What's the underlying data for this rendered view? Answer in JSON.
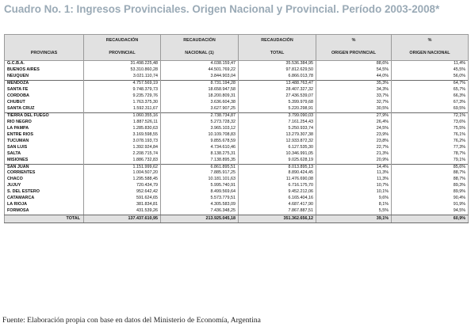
{
  "title": "Cuadro No. 1: Ingresos Provinciales. Origen Nacional y Provincial. Período 2003-2008*",
  "headers": {
    "provincias": "PROVINCIAS",
    "rec_prov_top": "RECAUDACIÓN",
    "rec_prov_bottom": "PROVINCIAL",
    "rec_nac_top": "RECAUDACIÓN",
    "rec_nac_bottom": "NACIONAL (1)",
    "rec_tot_top": "RECAUDACIÓN",
    "rec_tot_bottom": "TOTAL",
    "pct_prov_top": "%",
    "pct_prov_bottom": "ORIGEN PROVINCIAL",
    "pct_nac_top": "%",
    "pct_nac_bottom": "ORIGEN NACIONAL"
  },
  "groups": [
    [
      [
        "G.C.B.A.",
        "31.498.225,48",
        "4.038.159,47",
        "35.536.384,95",
        "88,6%",
        "11,4%"
      ],
      [
        "BUENOS AIRES",
        "53.310.860,28",
        "44.501.769,22",
        "97.812.629,50",
        "54,5%",
        "45,5%"
      ],
      [
        "NEUQUEN",
        "3.021.110,74",
        "3.844.903,04",
        "6.866.013,78",
        "44,0%",
        "56,0%"
      ]
    ],
    [
      [
        "MENDOZA",
        "4.757.569,19",
        "8.731.194,28",
        "13.488.763,47",
        "35,3%",
        "64,7%"
      ],
      [
        "SANTA FE",
        "9.748.379,73",
        "18.658.947,58",
        "28.407.327,32",
        "34,3%",
        "65,7%"
      ],
      [
        "CORDOBA",
        "9.235.729,76",
        "18.200.809,31",
        "27.436.539,07",
        "33,7%",
        "66,3%"
      ],
      [
        "CHUBUT",
        "1.763.375,30",
        "3.636.604,38",
        "5.399.979,68",
        "32,7%",
        "67,3%"
      ],
      [
        "SANTA CRUZ",
        "1.592.311,67",
        "3.627.907,25",
        "5.220.298,91",
        "30,5%",
        "69,5%"
      ]
    ],
    [
      [
        "TIERRA DEL FUEGO",
        "1.060.355,16",
        "2.738.734,87",
        "3.799.090,03",
        "27,9%",
        "72,1%"
      ],
      [
        "RIO NEGRO",
        "1.887.526,11",
        "5.273.728,32",
        "7.161.254,43",
        "26,4%",
        "73,6%"
      ],
      [
        "LA PAMPA",
        "1.285.830,63",
        "3.965.103,12",
        "5.250.933,74",
        "24,5%",
        "75,5%"
      ],
      [
        "ENTRE RIOS",
        "3.169.598,55",
        "10.109.708,83",
        "13.279.307,38",
        "23,9%",
        "76,1%"
      ],
      [
        "TUCUMAN",
        "3.078.193,73",
        "9.855.678,59",
        "12.933.872,32",
        "23,8%",
        "76,2%"
      ],
      [
        "SAN LUIS",
        "1.392.924,84",
        "4.734.610,46",
        "6.127.535,30",
        "22,7%",
        "77,3%"
      ],
      [
        "SALTA",
        "2.208.715,74",
        "8.138.275,31",
        "10.346.991,05",
        "21,3%",
        "78,7%"
      ],
      [
        "MISIONES",
        "1.886.732,83",
        "7.138.895,35",
        "9.025.628,19",
        "20,9%",
        "79,1%"
      ]
    ],
    [
      [
        "SAN JUAN",
        "1.151.999,62",
        "6.861.895,51",
        "8.013.895,13",
        "14,4%",
        "85,6%"
      ],
      [
        "CORRIENTES",
        "1.004.507,20",
        "7.885.917,25",
        "8.890.424,45",
        "11,3%",
        "88,7%"
      ],
      [
        "CHACO",
        "1.295.588,45",
        "10.181.101,63",
        "11.476.690,08",
        "11,3%",
        "88,7%"
      ],
      [
        "JUJUY",
        "720.434,79",
        "5.995.740,91",
        "6.716.175,70",
        "10,7%",
        "89,3%"
      ],
      [
        "S. DEL ESTERO",
        "952.642,42",
        "8.499.569,64",
        "9.452.212,06",
        "10,1%",
        "89,9%"
      ],
      [
        "CATAMARCA",
        "591.624,65",
        "5.573.779,51",
        "6.165.404,16",
        "9,6%",
        "90,4%"
      ],
      [
        "LA RIOJA",
        "381.834,81",
        "4.305.583,09",
        "4.687.417,90",
        "8,1%",
        "91,9%"
      ],
      [
        "FORMOSA",
        "431.539,26",
        "7.436.348,25",
        "7.867.887,51",
        "5,5%",
        "94,5%"
      ]
    ]
  ],
  "total": [
    "TOTAL",
    "137.437.610,95",
    "213.925.045,18",
    "351.362.656,12",
    "39,1%",
    "60,9%"
  ],
  "source": "Fuente: Elaboración propia con base en datos del Ministerio de Economía, Argentina",
  "colors": {
    "title": "#9aaab6",
    "header_bg": "#e1e1e1",
    "border": "#9a9a9a"
  }
}
